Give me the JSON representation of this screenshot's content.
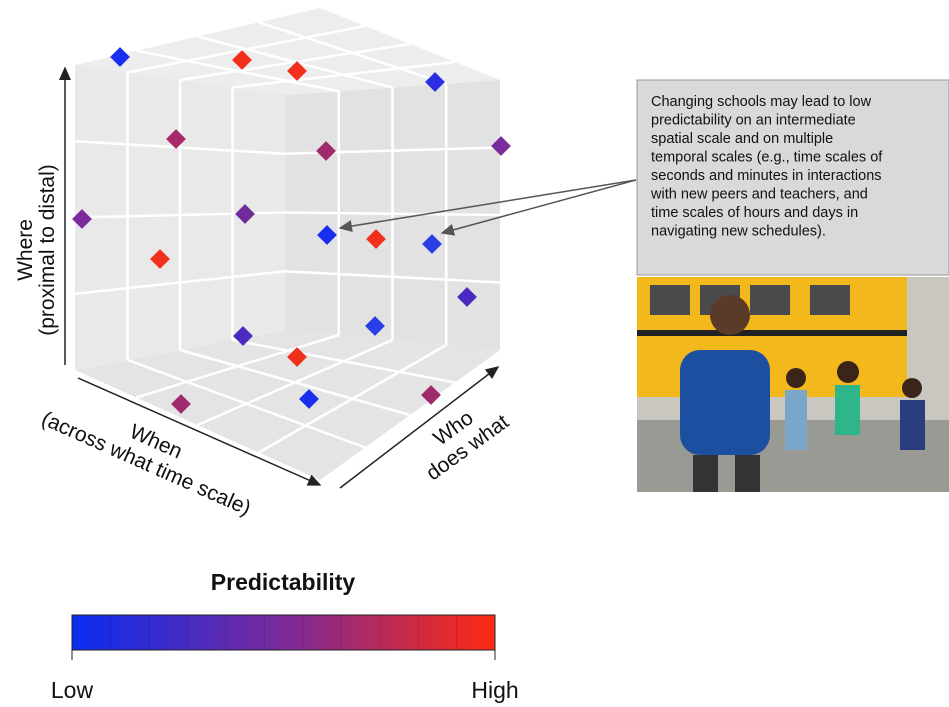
{
  "axes": {
    "where": {
      "label": "Where",
      "sublabel": "(proximal to distal)"
    },
    "when": {
      "label": "When",
      "sublabel": "(across what time scale)"
    },
    "who": {
      "label": "Who",
      "sublabel": "does what"
    }
  },
  "callout": {
    "lines": [
      "Changing schools may lead to low",
      "predictability on an intermediate",
      "spatial scale and on multiple",
      "temporal scales (e.g., time scales of",
      "seconds and minutes in interactions",
      "with new peers and teachers, and",
      "time scales of hours and days in",
      "navigating new schedules)."
    ]
  },
  "legend": {
    "title": "Predictability",
    "low": "Low",
    "high": "High"
  }
}
